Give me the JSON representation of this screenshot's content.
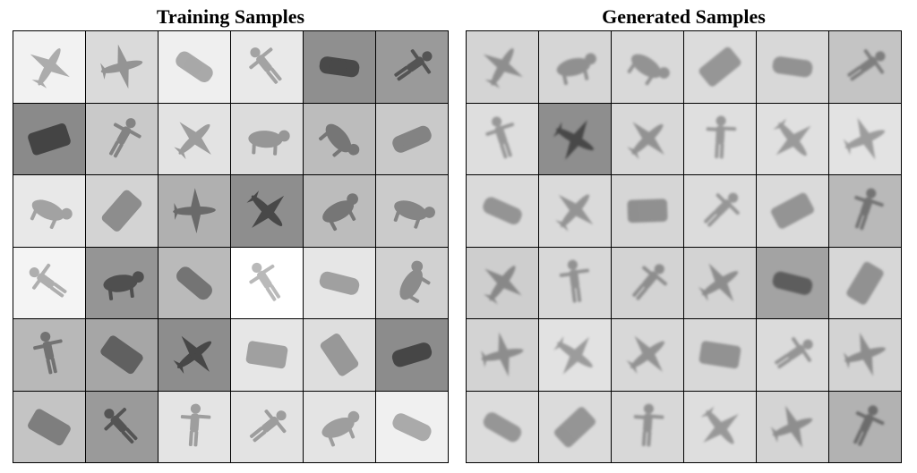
{
  "training": {
    "title": "Training Samples",
    "cells": [
      {
        "object": "airplane",
        "bg": "#f2f2f2"
      },
      {
        "object": "airplane",
        "bg": "#dadada"
      },
      {
        "object": "car",
        "bg": "#efefef"
      },
      {
        "object": "human",
        "bg": "#e9e9e9"
      },
      {
        "object": "car",
        "bg": "#8f8f8f"
      },
      {
        "object": "human",
        "bg": "#9a9a9a"
      },
      {
        "object": "truck",
        "bg": "#8a8a8a"
      },
      {
        "object": "human",
        "bg": "#c9c9c9"
      },
      {
        "object": "airplane",
        "bg": "#e3e3e3"
      },
      {
        "object": "animal",
        "bg": "#dcdcdc"
      },
      {
        "object": "animal",
        "bg": "#bcbcbc"
      },
      {
        "object": "car",
        "bg": "#c9c9c9"
      },
      {
        "object": "animal",
        "bg": "#e8e8e8"
      },
      {
        "object": "truck",
        "bg": "#d3d3d3"
      },
      {
        "object": "airplane",
        "bg": "#b0b0b0"
      },
      {
        "object": "airplane",
        "bg": "#8e8e8e"
      },
      {
        "object": "animal",
        "bg": "#bcbcbc"
      },
      {
        "object": "animal",
        "bg": "#cbcbcb"
      },
      {
        "object": "human",
        "bg": "#f4f4f4"
      },
      {
        "object": "animal",
        "bg": "#959595"
      },
      {
        "object": "car",
        "bg": "#bababa"
      },
      {
        "object": "human",
        "bg": "#ffffff"
      },
      {
        "object": "car",
        "bg": "#e6e6e6"
      },
      {
        "object": "animal",
        "bg": "#d1d1d1"
      },
      {
        "object": "human",
        "bg": "#b8b8b8"
      },
      {
        "object": "truck",
        "bg": "#a6a6a6"
      },
      {
        "object": "airplane",
        "bg": "#8d8d8d"
      },
      {
        "object": "truck",
        "bg": "#e6e6e6"
      },
      {
        "object": "truck",
        "bg": "#dedede"
      },
      {
        "object": "car",
        "bg": "#8c8c8c"
      },
      {
        "object": "truck",
        "bg": "#c4c4c4"
      },
      {
        "object": "human",
        "bg": "#9a9a9a"
      },
      {
        "object": "human",
        "bg": "#e4e4e4"
      },
      {
        "object": "human",
        "bg": "#e3e3e3"
      },
      {
        "object": "animal",
        "bg": "#e4e4e4"
      },
      {
        "object": "car",
        "bg": "#f0f0f0"
      }
    ]
  },
  "generated": {
    "title": "Generated Samples",
    "cells": [
      {
        "object": "airplane",
        "bg": "#d4d4d4"
      },
      {
        "object": "animal",
        "bg": "#d6d6d6"
      },
      {
        "object": "animal",
        "bg": "#d9d9d9"
      },
      {
        "object": "truck",
        "bg": "#dcdcdc"
      },
      {
        "object": "car",
        "bg": "#d8d8d8"
      },
      {
        "object": "human",
        "bg": "#c4c4c4"
      },
      {
        "object": "human",
        "bg": "#dedede"
      },
      {
        "object": "airplane",
        "bg": "#8e8e8e"
      },
      {
        "object": "airplane",
        "bg": "#d8d8d8"
      },
      {
        "object": "human",
        "bg": "#dfdfdf"
      },
      {
        "object": "airplane",
        "bg": "#e0e0e0"
      },
      {
        "object": "airplane",
        "bg": "#e3e3e3"
      },
      {
        "object": "car",
        "bg": "#dadada"
      },
      {
        "object": "airplane",
        "bg": "#dadada"
      },
      {
        "object": "truck",
        "bg": "#d6d6d6"
      },
      {
        "object": "human",
        "bg": "#dcdcdc"
      },
      {
        "object": "truck",
        "bg": "#dadada"
      },
      {
        "object": "human",
        "bg": "#b9b9b9"
      },
      {
        "object": "airplane",
        "bg": "#cecece"
      },
      {
        "object": "human",
        "bg": "#d8d8d8"
      },
      {
        "object": "human",
        "bg": "#d3d3d3"
      },
      {
        "object": "airplane",
        "bg": "#d3d3d3"
      },
      {
        "object": "car",
        "bg": "#a3a3a3"
      },
      {
        "object": "truck",
        "bg": "#d7d7d7"
      },
      {
        "object": "airplane",
        "bg": "#d3d3d3"
      },
      {
        "object": "airplane",
        "bg": "#e2e2e2"
      },
      {
        "object": "airplane",
        "bg": "#d8d8d8"
      },
      {
        "object": "truck",
        "bg": "#d8d8d8"
      },
      {
        "object": "human",
        "bg": "#dbdbdb"
      },
      {
        "object": "airplane",
        "bg": "#d3d3d3"
      },
      {
        "object": "car",
        "bg": "#dcdcdc"
      },
      {
        "object": "truck",
        "bg": "#dbdbdb"
      },
      {
        "object": "human",
        "bg": "#d8d8d8"
      },
      {
        "object": "airplane",
        "bg": "#dedede"
      },
      {
        "object": "airplane",
        "bg": "#d4d4d4"
      },
      {
        "object": "human",
        "bg": "#b2b2b2"
      }
    ]
  }
}
